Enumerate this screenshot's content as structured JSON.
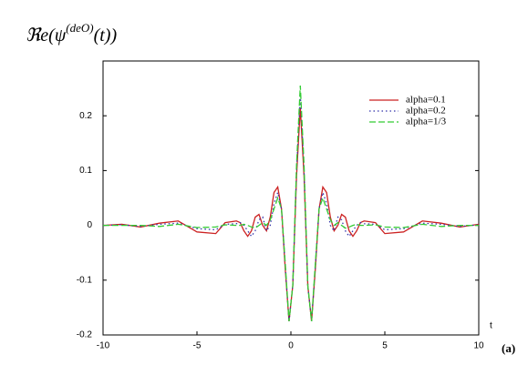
{
  "chart_data": {
    "type": "line",
    "title": {
      "main": "ℜe(ψ",
      "superscript": "(deO)",
      "rest": "(t))"
    },
    "xlabel": "t",
    "annotation": "(a)",
    "x": [
      -10,
      -9,
      -8,
      -7,
      -6,
      -5,
      -4,
      -3.5,
      -2.9,
      -2.7,
      -2.5,
      -2.3,
      -2.1,
      -1.9,
      -1.7,
      -1.5,
      -1.3,
      -1.1,
      -0.9,
      -0.7,
      -0.5,
      -0.3,
      -0.1,
      0.1,
      0.3,
      0.5,
      0.7,
      0.9,
      1.1,
      1.3,
      1.5,
      1.7,
      1.9,
      2.1,
      2.3,
      2.5,
      2.7,
      2.9,
      3.1,
      3.3,
      3.5,
      3.7,
      3.9,
      4.5,
      5,
      6,
      7,
      8,
      9,
      10
    ],
    "series": [
      {
        "name": "alpha=0.1",
        "color": "#cc2222",
        "dash": "none",
        "values": [
          0,
          0.002,
          -0.003,
          0.004,
          0.008,
          -0.012,
          -0.015,
          0.005,
          0.008,
          0.005,
          -0.01,
          -0.02,
          -0.01,
          0.015,
          0.02,
          0.0,
          -0.01,
          0.015,
          0.06,
          0.07,
          0.03,
          -0.08,
          -0.175,
          -0.11,
          0.09,
          0.215,
          0.09,
          -0.11,
          -0.175,
          -0.08,
          0.03,
          0.07,
          0.06,
          0.015,
          -0.01,
          0.0,
          0.02,
          0.015,
          -0.01,
          -0.02,
          -0.01,
          0.005,
          0.008,
          0.005,
          -0.015,
          -0.012,
          0.008,
          0.004,
          -0.003,
          0.002
        ]
      },
      {
        "name": "alpha=0.2",
        "color": "#3333aa",
        "dash": "1.5 3",
        "values": [
          0,
          0.001,
          -0.002,
          0.002,
          0.004,
          -0.006,
          -0.008,
          0.002,
          0.003,
          0.005,
          0.0,
          -0.01,
          -0.02,
          -0.01,
          0.01,
          0.015,
          -0.01,
          0.0,
          0.04,
          0.06,
          0.03,
          -0.075,
          -0.175,
          -0.11,
          0.1,
          0.24,
          0.1,
          -0.11,
          -0.175,
          -0.075,
          0.03,
          0.06,
          0.04,
          0.0,
          -0.01,
          0.015,
          0.01,
          -0.01,
          -0.02,
          -0.01,
          0.0,
          0.005,
          0.003,
          0.002,
          -0.008,
          -0.006,
          0.004,
          0.002,
          -0.002,
          0.001
        ]
      },
      {
        "name": "alpha=1/3",
        "color": "#33cc33",
        "dash": "7 3",
        "values": [
          0,
          0,
          0,
          -0.002,
          0.002,
          -0.004,
          -0.003,
          0.001,
          0,
          0,
          0.002,
          0,
          -0.003,
          -0.005,
          0,
          0.005,
          0,
          0.01,
          0.03,
          0.05,
          0.03,
          -0.07,
          -0.175,
          -0.11,
          0.11,
          0.255,
          0.11,
          -0.11,
          -0.175,
          -0.07,
          0.03,
          0.05,
          0.03,
          0.01,
          0,
          0.005,
          0,
          -0.005,
          -0.003,
          0,
          0.002,
          0,
          0,
          0.001,
          -0.003,
          -0.004,
          0.002,
          -0.002,
          0,
          0
        ]
      }
    ],
    "xlim": [
      -10,
      10
    ],
    "ylim": [
      -0.2,
      0.3
    ],
    "xticks": [
      -10,
      -5,
      0,
      5,
      10
    ],
    "yticks": [
      -0.2,
      -0.1,
      0,
      0.1,
      0.2
    ],
    "grid": false,
    "legend": "upper right"
  }
}
